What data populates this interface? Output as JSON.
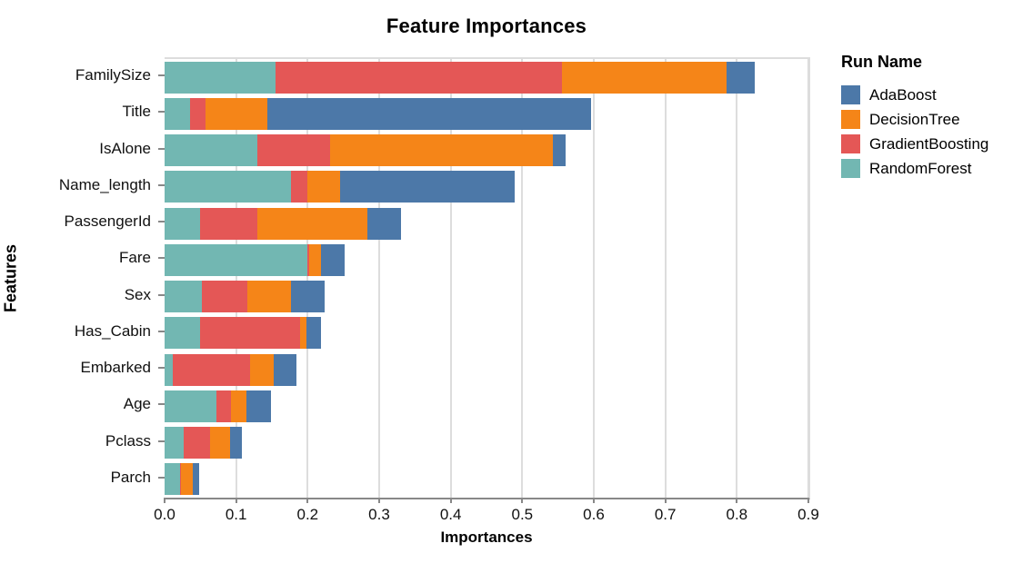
{
  "title": "Feature Importances",
  "axis": {
    "x_title": "Importances",
    "y_title": "Features",
    "x_tick_labels": [
      "0.0",
      "0.1",
      "0.2",
      "0.3",
      "0.4",
      "0.5",
      "0.6",
      "0.7",
      "0.8",
      "0.9"
    ]
  },
  "legend": {
    "title": "Run Name",
    "entries": [
      "AdaBoost",
      "DecisionTree",
      "GradientBoosting",
      "RandomForest"
    ]
  },
  "style_colors": {
    "adaboost_blue": "#4c78a8",
    "decisiontree_orange": "#f58518",
    "gradientboosting_red": "#e45756",
    "randomforest_teal": "#72b7b2",
    "gridline": "#dddddd",
    "axis_line": "#888888"
  },
  "chart_data": {
    "type": "bar",
    "orientation": "horizontal",
    "stacked": true,
    "title": "Feature Importances",
    "xlabel": "Importances",
    "ylabel": "Features",
    "xlim": [
      0,
      0.9
    ],
    "xticks": [
      0,
      0.1,
      0.2,
      0.3,
      0.4,
      0.5,
      0.6,
      0.7,
      0.8,
      0.9
    ],
    "grid": true,
    "legend_title": "Run Name",
    "legend_position": "right",
    "categories": [
      "FamilySize",
      "Title",
      "IsAlone",
      "Name_length",
      "PassengerId",
      "Fare",
      "Sex",
      "Has_Cabin",
      "Embarked",
      "Age",
      "Pclass",
      "Parch"
    ],
    "stack_order": [
      "RandomForest",
      "GradientBoosting",
      "DecisionTree",
      "AdaBoost"
    ],
    "series": [
      {
        "name": "AdaBoost",
        "color": "#4c78a8",
        "values": [
          0.04,
          0.452,
          0.017,
          0.245,
          0.047,
          0.033,
          0.047,
          0.021,
          0.032,
          0.035,
          0.016,
          0.008
        ]
      },
      {
        "name": "DecisionTree",
        "color": "#f58518",
        "values": [
          0.23,
          0.087,
          0.312,
          0.045,
          0.154,
          0.017,
          0.061,
          0.008,
          0.032,
          0.021,
          0.028,
          0.017
        ]
      },
      {
        "name": "GradientBoosting",
        "color": "#e45756",
        "values": [
          0.4,
          0.021,
          0.101,
          0.023,
          0.08,
          0.002,
          0.064,
          0.14,
          0.109,
          0.021,
          0.037,
          0.002
        ]
      },
      {
        "name": "RandomForest",
        "color": "#72b7b2",
        "values": [
          0.155,
          0.036,
          0.13,
          0.177,
          0.05,
          0.2,
          0.052,
          0.05,
          0.011,
          0.072,
          0.027,
          0.021
        ]
      }
    ]
  }
}
